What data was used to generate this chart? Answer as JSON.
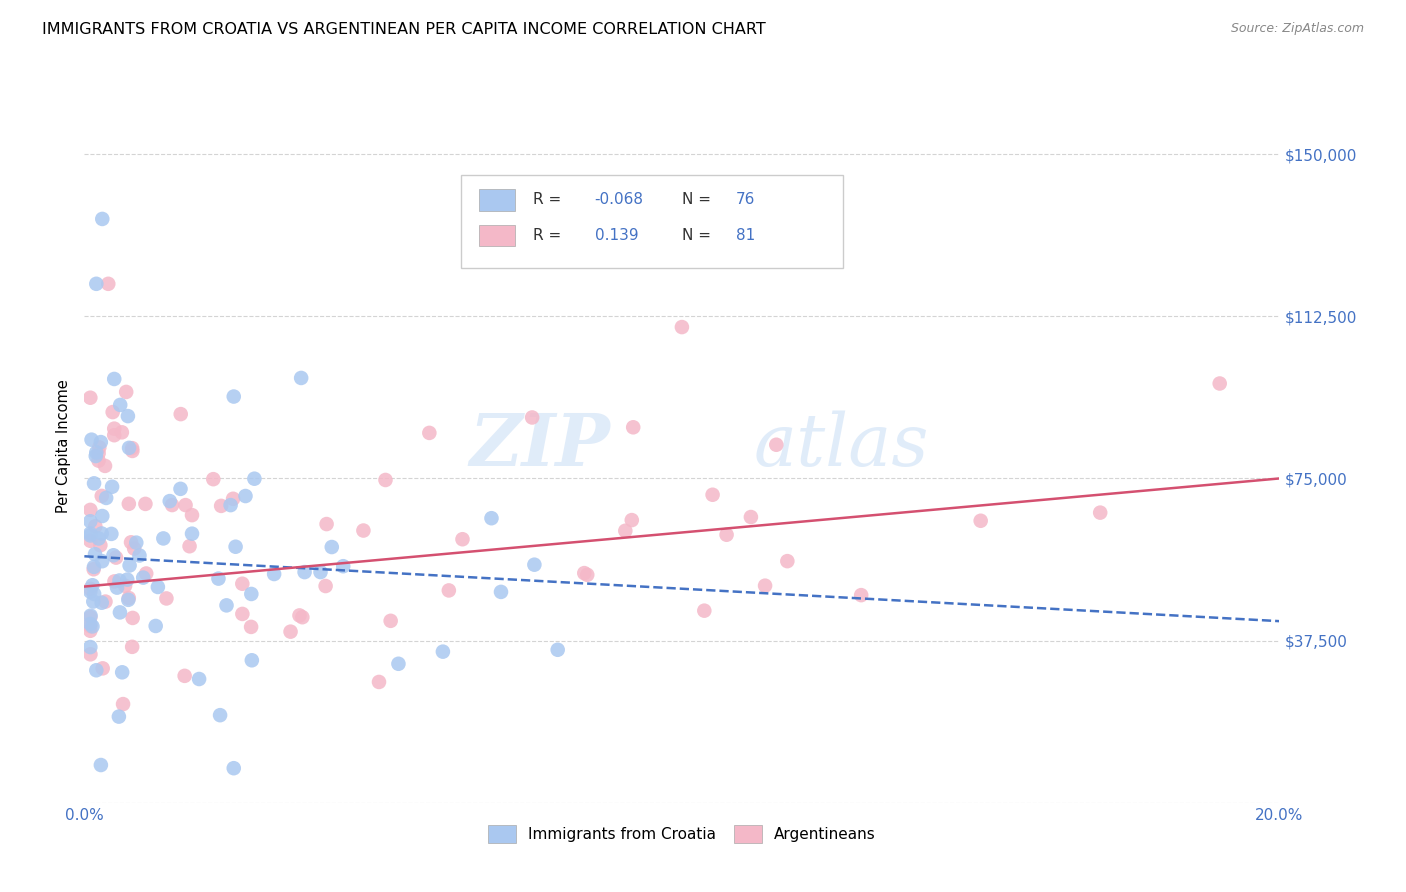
{
  "title": "IMMIGRANTS FROM CROATIA VS ARGENTINEAN PER CAPITA INCOME CORRELATION CHART",
  "source": "Source: ZipAtlas.com",
  "ylabel": "Per Capita Income",
  "xlim": [
    0.0,
    0.2
  ],
  "ylim": [
    0,
    165000
  ],
  "yticks": [
    0,
    37500,
    75000,
    112500,
    150000
  ],
  "xticks": [
    0.0,
    0.05,
    0.1,
    0.15,
    0.2
  ],
  "watermark_zip": "ZIP",
  "watermark_atlas": "atlas",
  "croatia_R": -0.068,
  "croatia_N": 76,
  "argentina_R": 0.139,
  "argentina_N": 81,
  "scatter_color_croatia": "#aac8f0",
  "scatter_color_argentina": "#f4b8c8",
  "line_color_croatia": "#4472c4",
  "line_color_argentina": "#d45070",
  "axis_tick_color": "#4472c4",
  "title_fontsize": 11.5,
  "background_color": "#ffffff",
  "grid_color": "#d0d0d0",
  "legend_label_color": "#4472c4",
  "legend_text_color": "#333333",
  "source_color": "#888888",
  "bottom_legend_labels": [
    "Immigrants from Croatia",
    "Argentineans"
  ],
  "seed": 42
}
